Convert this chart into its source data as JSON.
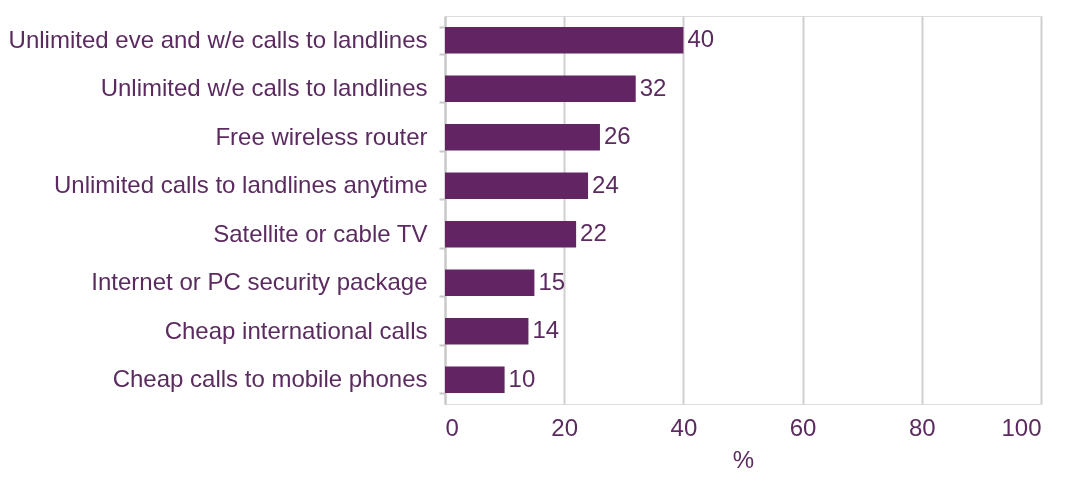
{
  "chart_data": {
    "type": "bar",
    "orientation": "horizontal",
    "xlabel": "%",
    "categories": [
      "Unlimited eve and w/e calls to landlines",
      "Unlimited w/e calls to landlines",
      "Free wireless router",
      "Unlimited calls to landlines anytime",
      "Satellite or cable TV",
      "Internet or PC security package",
      "Cheap international calls",
      "Cheap calls to mobile phones"
    ],
    "values": [
      40,
      32,
      26,
      24,
      22,
      15,
      14,
      10
    ],
    "color": "#632463",
    "xlim": [
      0,
      100
    ],
    "xticks": [
      0,
      20,
      40,
      60,
      80,
      100
    ],
    "grid": "x",
    "data_labels": true
  }
}
